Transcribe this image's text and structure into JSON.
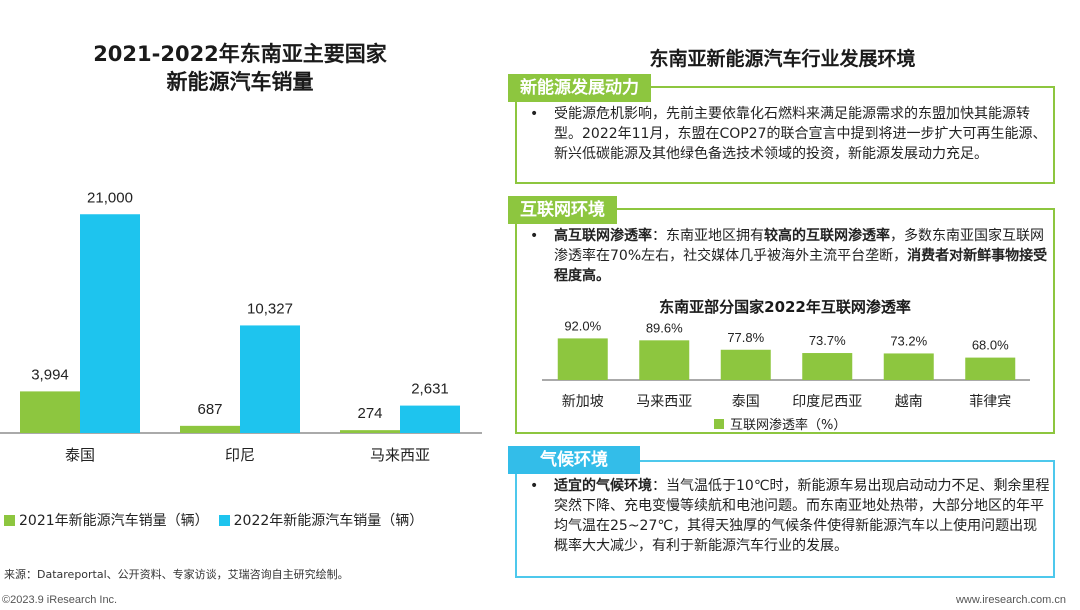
{
  "left_panel": {
    "title_line1": "2021-2022年东南亚主要国家",
    "title_line2": "新能源汽车销量",
    "source": "来源：Datareportal、公开资料、专家访谈，艾瑞咨询自主研究绘制。"
  },
  "chart_data": [
    {
      "type": "bar",
      "title": "2021-2022年东南亚主要国家新能源汽车销量",
      "categories": [
        "泰国",
        "印尼",
        "马来西亚"
      ],
      "series": [
        {
          "name": "2021年新能源汽车销量（辆）",
          "values": [
            3994,
            687,
            274
          ],
          "labels": [
            "3,994",
            "687",
            "274"
          ],
          "color": "#8dc63f"
        },
        {
          "name": "2022年新能源汽车销量（辆）",
          "values": [
            21000,
            10327,
            2631
          ],
          "labels": [
            "21,000",
            "10,327",
            "2,631"
          ],
          "color": "#1ec4ee"
        }
      ],
      "ylim": [
        0,
        24000
      ],
      "grid": false,
      "legend_position": "bottom"
    },
    {
      "type": "bar",
      "title": "东南亚部分国家2022年互联网渗透率",
      "categories": [
        "新加坡",
        "马来西亚",
        "泰国",
        "印度尼西亚",
        "越南",
        "菲律宾"
      ],
      "series": [
        {
          "name": "互联网渗透率（%）",
          "values": [
            92.0,
            89.6,
            77.8,
            73.7,
            73.2,
            68.0
          ],
          "labels": [
            "92.0%",
            "89.6%",
            "77.8%",
            "73.7%",
            "73.2%",
            "68.0%"
          ],
          "color": "#8dc63f"
        }
      ],
      "ylim": [
        40,
        100
      ],
      "grid": false,
      "legend_position": "bottom"
    }
  ],
  "right_panel": {
    "title": "东南亚新能源汽车行业发展环境",
    "sections": [
      {
        "tag": "新能源发展动力",
        "bullet": "•",
        "text": "受能源危机影响，先前主要依靠化石燃料来满足能源需求的东盟加快其能源转型。2022年11月，东盟在COP27的联合宣言中提到将进一步扩大可再生能源、新兴低碳能源及其他绿色备选技术领域的投资，新能源发展动力充足。"
      },
      {
        "tag": "互联网环境",
        "bullet": "•",
        "bold1": "高互联网渗透率",
        "text1": "：东南亚地区拥有",
        "bold2": "较高的互联网渗透率",
        "text2": "，多数东南亚国家互联网渗透率在70%左右，社交媒体几乎被海外主流平台垄断，",
        "bold3": "消费者对新鲜事物接受程度高。"
      },
      {
        "tag": "气候环境",
        "bullet": "•",
        "bold1": "适宜的气候环境",
        "text1": "：当气温低于10℃时，新能源车易出现启动动力不足、剩余里程突然下降、充电变慢等续航和电池问题。而东南亚地处热带，大部分地区的年平均气温在25~27℃，其得天独厚的气候条件使得新能源汽车以上使用问题出现概率大大减少，有利于新能源汽车行业的发展。"
      }
    ]
  },
  "footer": {
    "copyright": "©2023.9 iResearch Inc.",
    "website": "www.iresearch.com.cn"
  },
  "colors": {
    "green": "#8dc63f",
    "blue": "#1ec4ee",
    "tag_blue": "#33bde9",
    "border_blue": "#4dc8ec"
  }
}
